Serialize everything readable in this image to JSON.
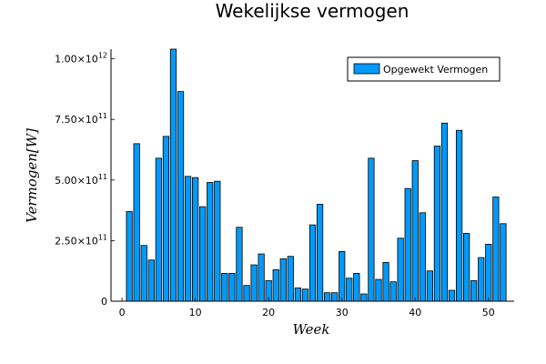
{
  "chart_data": {
    "type": "bar",
    "title": "Wekelijkse vermogen",
    "xlabel": "Week",
    "ylabel": "Vermogen[W]",
    "legend": {
      "label": "Opgewekt Vermogen",
      "position": "top-right"
    },
    "bar_color": "#009AFA",
    "grid": false,
    "xlim": [
      -1.5,
      53.5
    ],
    "ylim": [
      0,
      1040000000000.0
    ],
    "xticks": [
      {
        "value": 0,
        "label": "0"
      },
      {
        "value": 10,
        "label": "10"
      },
      {
        "value": 20,
        "label": "20"
      },
      {
        "value": 30,
        "label": "30"
      },
      {
        "value": 40,
        "label": "40"
      },
      {
        "value": 50,
        "label": "50"
      }
    ],
    "yticks": [
      {
        "value": 0,
        "mant": "0",
        "exp": ""
      },
      {
        "value": 250000000000.0,
        "mant": "2.50×10",
        "exp": "11"
      },
      {
        "value": 500000000000.0,
        "mant": "5.00×10",
        "exp": "11"
      },
      {
        "value": 750000000000.0,
        "mant": "7.50×10",
        "exp": "11"
      },
      {
        "value": 1000000000000.0,
        "mant": "1.00×10",
        "exp": "12"
      }
    ],
    "x": [
      1,
      2,
      3,
      4,
      5,
      6,
      7,
      8,
      9,
      10,
      11,
      12,
      13,
      14,
      15,
      16,
      17,
      18,
      19,
      20,
      21,
      22,
      23,
      24,
      25,
      26,
      27,
      28,
      29,
      30,
      31,
      32,
      33,
      34,
      35,
      36,
      37,
      38,
      39,
      40,
      41,
      42,
      43,
      44,
      45,
      46,
      47,
      48,
      49,
      50,
      51,
      52
    ],
    "values": [
      370000000000.0,
      650000000000.0,
      230000000000.0,
      170000000000.0,
      590000000000.0,
      680000000000.0,
      1040000000000.0,
      865000000000.0,
      515000000000.0,
      510000000000.0,
      390000000000.0,
      490000000000.0,
      495000000000.0,
      115000000000.0,
      115000000000.0,
      305000000000.0,
      65000000000.0,
      150000000000.0,
      195000000000.0,
      85000000000.0,
      130000000000.0,
      175000000000.0,
      185000000000.0,
      55000000000.0,
      50000000000.0,
      315000000000.0,
      400000000000.0,
      35000000000.0,
      35000000000.0,
      205000000000.0,
      95000000000.0,
      115000000000.0,
      30000000000.0,
      590000000000.0,
      90000000000.0,
      160000000000.0,
      80000000000.0,
      260000000000.0,
      465000000000.0,
      580000000000.0,
      365000000000.0,
      125000000000.0,
      640000000000.0,
      735000000000.0,
      45000000000.0,
      705000000000.0,
      280000000000.0,
      85000000000.0,
      180000000000.0,
      235000000000.0,
      430000000000.0,
      320000000000.0
    ]
  }
}
